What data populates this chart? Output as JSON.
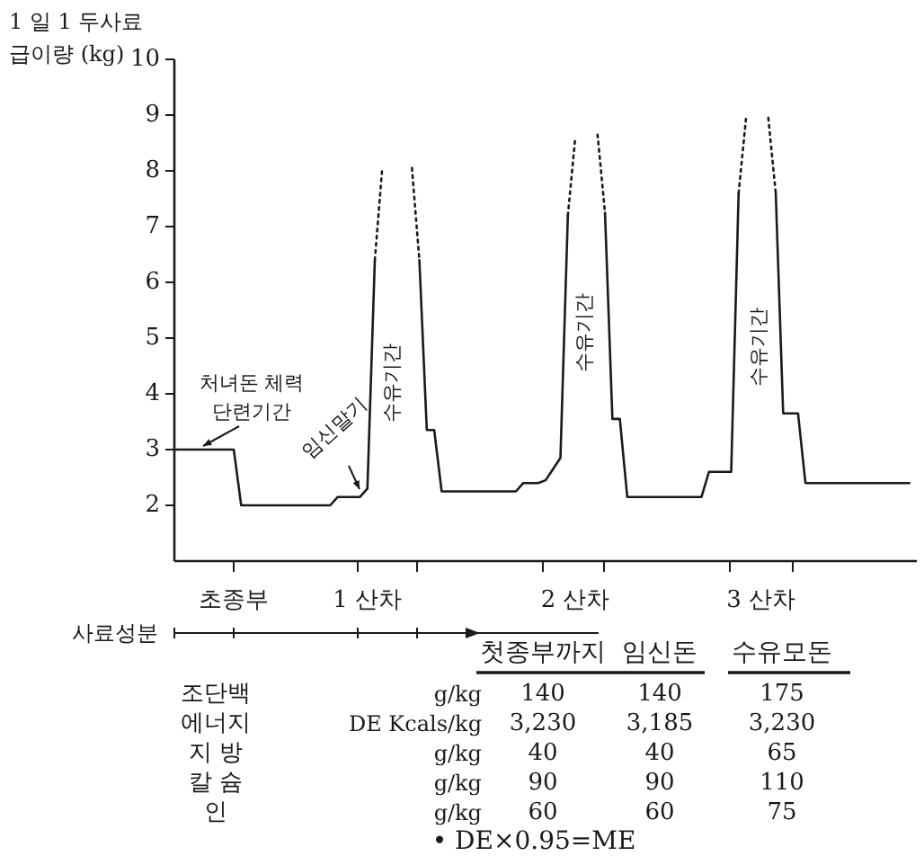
{
  "chart_data": [
    {
      "type": "line",
      "ylabel": "1 일 1 두사료 급이량 (kg)",
      "ylim": [
        1,
        10
      ],
      "yticks": [
        2,
        3,
        4,
        5,
        6,
        7,
        8,
        9,
        10
      ],
      "categories": [
        null,
        null,
        null,
        null,
        null,
        null,
        null,
        null,
        "초종부",
        null,
        null,
        null,
        null,
        null,
        null,
        null,
        null,
        null,
        null,
        null,
        null,
        null,
        null,
        null,
        null,
        null,
        "1 산차",
        null,
        null,
        null,
        null,
        null,
        null,
        null,
        null,
        null,
        null,
        null,
        null,
        null,
        null,
        null,
        null,
        null,
        null,
        null,
        null,
        null,
        null,
        null,
        null,
        null,
        null,
        null,
        "2 산차",
        null,
        null,
        null,
        null,
        null,
        null,
        null,
        null,
        null,
        null,
        null,
        null,
        null,
        null,
        null,
        null,
        null,
        null,
        null,
        null,
        null,
        null,
        null,
        null,
        "3 산차",
        null,
        null,
        null,
        null,
        null,
        null,
        null,
        null,
        null,
        null,
        null,
        null,
        null,
        null,
        null,
        null,
        null,
        null,
        null,
        null,
        null
      ],
      "grid": false,
      "marker": "none",
      "series": [
        {
          "color": "#1a1a1a",
          "line_style": "solid",
          "values": [
            3,
            3,
            3,
            3,
            3,
            3,
            3,
            3,
            3,
            2,
            2,
            2,
            2,
            2,
            2,
            2,
            2,
            2,
            2,
            2,
            2,
            2,
            2.15,
            2.15,
            2.15,
            2.15,
            2.3,
            6.4,
            null,
            null,
            null,
            null,
            null,
            6.4,
            3.35,
            3.35,
            2.25,
            2.25,
            2.25,
            2.25,
            2.25,
            2.25,
            2.25,
            2.25,
            2.25,
            2.25,
            2.25,
            2.4,
            2.4,
            2.4,
            2.45,
            2.65,
            2.85,
            7.2,
            null,
            null,
            null,
            null,
            7.25,
            3.55,
            3.55,
            2.15,
            2.15,
            2.15,
            2.15,
            2.15,
            2.15,
            2.15,
            2.15,
            2.15,
            2.15,
            2.15,
            2.6,
            2.6,
            2.6,
            2.6,
            7.6,
            null,
            null,
            null,
            null,
            7.6,
            3.65,
            3.65,
            3.65,
            2.4,
            2.4,
            2.4,
            2.4,
            2.4,
            2.4,
            2.4,
            2.4,
            2.4,
            2.4,
            2.4,
            2.4,
            2.4,
            2.4,
            2.4,
            null
          ]
        },
        {
          "color": "#1a1a1a",
          "line_style": "dotted",
          "values": [
            null,
            null,
            null,
            null,
            null,
            null,
            null,
            null,
            null,
            null,
            null,
            null,
            null,
            null,
            null,
            null,
            null,
            null,
            null,
            null,
            null,
            null,
            null,
            null,
            null,
            null,
            null,
            6.4,
            8.05,
            null,
            null,
            null,
            8.05,
            6.4,
            null,
            null,
            null,
            null,
            null,
            null,
            null,
            null,
            null,
            null,
            null,
            null,
            null,
            null,
            null,
            null,
            null,
            null,
            null,
            7.2,
            8.6,
            null,
            null,
            8.65,
            7.25,
            null,
            null,
            null,
            null,
            null,
            null,
            null,
            null,
            null,
            null,
            null,
            null,
            null,
            null,
            null,
            null,
            null,
            7.6,
            8.95,
            null,
            null,
            8.95,
            7.6,
            null,
            null,
            null,
            null,
            null,
            null,
            null,
            null,
            null,
            null,
            null,
            null,
            null,
            null,
            null,
            null,
            null,
            null,
            null
          ]
        }
      ],
      "annotations": [
        "처녀돈 체력 단련기간",
        "임신말기",
        "수유기간",
        "수유기간",
        "수유기간"
      ]
    },
    {
      "type": "other",
      "title": "사료성분",
      "categories": [
        "첫종부까지",
        "임신돈",
        "수유모돈"
      ],
      "y_categories": [
        "조단백",
        "에너지",
        "지 방",
        "칼 슘",
        "인"
      ],
      "y2_categories": [
        "g/kg",
        "DE  Kcals/kg",
        "g/kg",
        "g/kg",
        "g/kg"
      ],
      "cell_labels": [
        [
          "140",
          "140",
          "175"
        ],
        [
          "3,230",
          "3,185",
          "3,230"
        ],
        [
          "40",
          "40",
          "65"
        ],
        [
          "90",
          "90",
          "110"
        ],
        [
          "60",
          "60",
          "75"
        ]
      ],
      "annotations": [
        "• DE×0.95=ME"
      ]
    }
  ]
}
